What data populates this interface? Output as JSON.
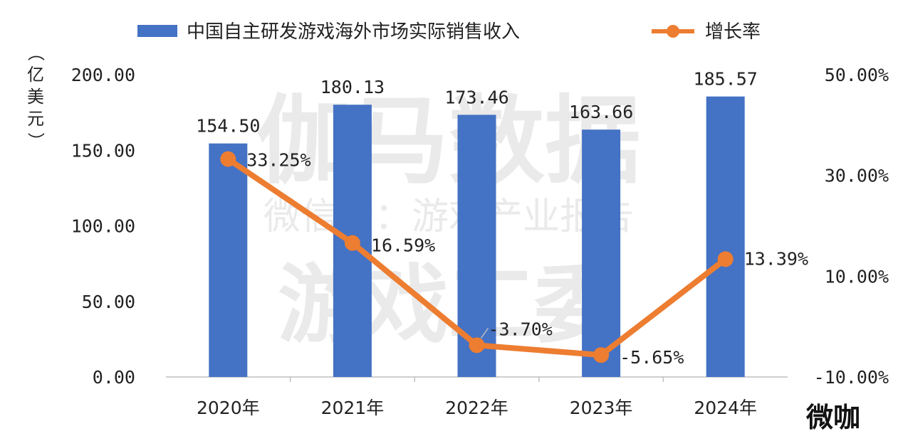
{
  "chart_data": {
    "type": "bar",
    "categories": [
      "2020年",
      "2021年",
      "2022年",
      "2023年",
      "2024年"
    ],
    "series": [
      {
        "name": "中国自主研发游戏海外市场实际销售收入",
        "kind": "bar",
        "axis": "left",
        "values": [
          154.5,
          180.13,
          173.46,
          163.66,
          185.57
        ],
        "labels": [
          "154.50",
          "180.13",
          "173.46",
          "163.66",
          "185.57"
        ]
      },
      {
        "name": "增长率",
        "kind": "line",
        "axis": "right",
        "values": [
          33.25,
          16.59,
          -3.7,
          -5.65,
          13.39
        ],
        "labels": [
          "33.25%",
          "16.59%",
          "-3.70%",
          "-5.65%",
          "13.39%"
        ]
      }
    ],
    "ylabel": "（亿美元）",
    "ylim": [
      0,
      200
    ],
    "yticks": [
      "0.00",
      "50.00",
      "100.00",
      "150.00",
      "200.00"
    ],
    "y2lim": [
      -10,
      50
    ],
    "y2ticks": [
      "-10.00%",
      "10.00%",
      "30.00%",
      "50.00%"
    ],
    "legend_position": "top",
    "grid": false
  },
  "colors": {
    "bar": "#4472C4",
    "line": "#ED7D31"
  },
  "watermark": {
    "line1": "伽马数据",
    "line2": "微信号：游戏产业报告",
    "line3": "游戏工委"
  },
  "badge": "微咖"
}
